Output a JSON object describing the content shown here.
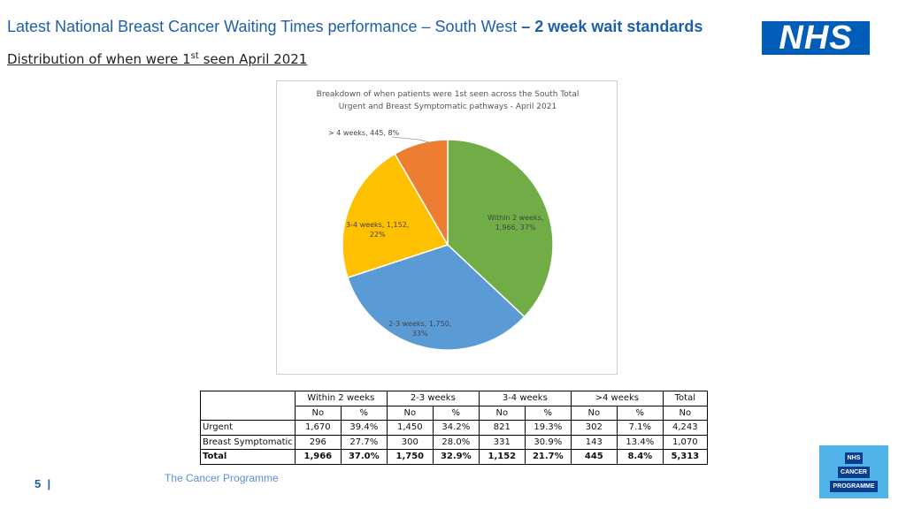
{
  "header": {
    "title_main": "Latest National Breast Cancer Waiting Times performance – South West",
    "title_bold": " – 2 week wait standards",
    "subtitle_pre": "Distribution of when were 1",
    "subtitle_sup": "st",
    "subtitle_post": " seen April 2021",
    "logo_text": "NHS"
  },
  "chart_data": {
    "type": "pie",
    "title_line1": "Breakdown of when patients were 1st seen across the South Total",
    "title_line2": "Urgent and Breast Symptomatic pathways - April 2021",
    "slices": [
      {
        "label": "Within 2 weeks",
        "count": 1966,
        "count_text": "1,966",
        "percent": 37,
        "percent_text": "37%",
        "color": "#70ad47"
      },
      {
        "label": "2-3 weeks",
        "count": 1750,
        "count_text": "1,750",
        "percent": 33,
        "percent_text": "33%",
        "color": "#5b9bd5"
      },
      {
        "label": "3-4 weeks",
        "count": 1152,
        "count_text": "1,152",
        "percent": 22,
        "percent_text": "22%",
        "color": "#ffc000"
      },
      {
        "label": "> 4 weeks",
        "count": 445,
        "count_text": "445",
        "percent": 8,
        "percent_text": "8%",
        "color": "#ed7d31"
      }
    ]
  },
  "table": {
    "groups": [
      "Within 2 weeks",
      "2-3 weeks",
      "3-4 weeks",
      ">4 weeks",
      "Total"
    ],
    "subheaders": [
      "No",
      "%",
      "No",
      "%",
      "No",
      "%",
      "No",
      "%",
      "No"
    ],
    "rows": [
      {
        "label": "Urgent",
        "cells": [
          "1,670",
          "39.4%",
          "1,450",
          "34.2%",
          "821",
          "19.3%",
          "302",
          "7.1%",
          "4,243"
        ]
      },
      {
        "label": "Breast Symptomatic",
        "cells": [
          "296",
          "27.7%",
          "300",
          "28.0%",
          "331",
          "30.9%",
          "143",
          "13.4%",
          "1,070"
        ]
      },
      {
        "label": "Total",
        "cells": [
          "1,966",
          "37.0%",
          "1,750",
          "32.9%",
          "1,152",
          "21.7%",
          "445",
          "8.4%",
          "5,313"
        ]
      }
    ]
  },
  "footer": {
    "page_number": "5",
    "separator": "|",
    "programme": "The Cancer Programme",
    "logo_line1": "NHS",
    "logo_line2": "CANCER",
    "logo_line3": "PROGRAMME"
  }
}
